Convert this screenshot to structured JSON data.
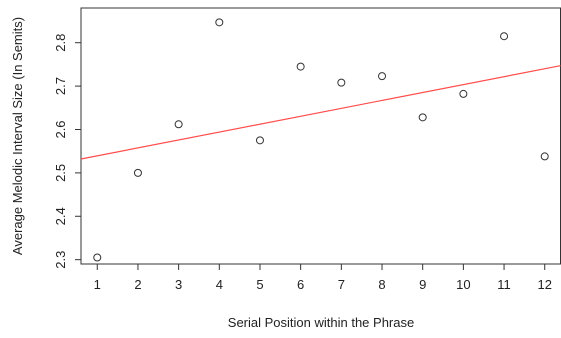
{
  "chart_data": {
    "type": "scatter",
    "title": "",
    "xlabel": "Serial Position within the Phrase",
    "ylabel": "Average Melodic Interval Size (In Semits)",
    "x": [
      1,
      2,
      3,
      4,
      5,
      6,
      7,
      8,
      9,
      10,
      11,
      12
    ],
    "y": [
      2.305,
      2.5,
      2.612,
      2.847,
      2.575,
      2.745,
      2.708,
      2.723,
      2.628,
      2.682,
      2.815,
      2.538
    ],
    "xlim": [
      0.6,
      12.4
    ],
    "ylim": [
      2.29,
      2.88
    ],
    "xticks": [
      1,
      2,
      3,
      4,
      5,
      6,
      7,
      8,
      9,
      10,
      11,
      12
    ],
    "yticks": [
      2.3,
      2.4,
      2.5,
      2.6,
      2.7,
      2.8
    ],
    "xtick_labels": [
      "1",
      "2",
      "3",
      "4",
      "5",
      "6",
      "7",
      "8",
      "9",
      "10",
      "11",
      "12"
    ],
    "ytick_labels": [
      "2.3",
      "2.4",
      "2.5",
      "2.6",
      "2.7",
      "2.8"
    ],
    "fit_line": {
      "x": [
        0.6,
        12.4
      ],
      "y": [
        2.532,
        2.747
      ]
    },
    "grid": false,
    "legend": "none",
    "colors": {
      "points": "#333333",
      "fit_line": "#ff4d4d",
      "axes": "#333333",
      "text": "#222222"
    }
  }
}
